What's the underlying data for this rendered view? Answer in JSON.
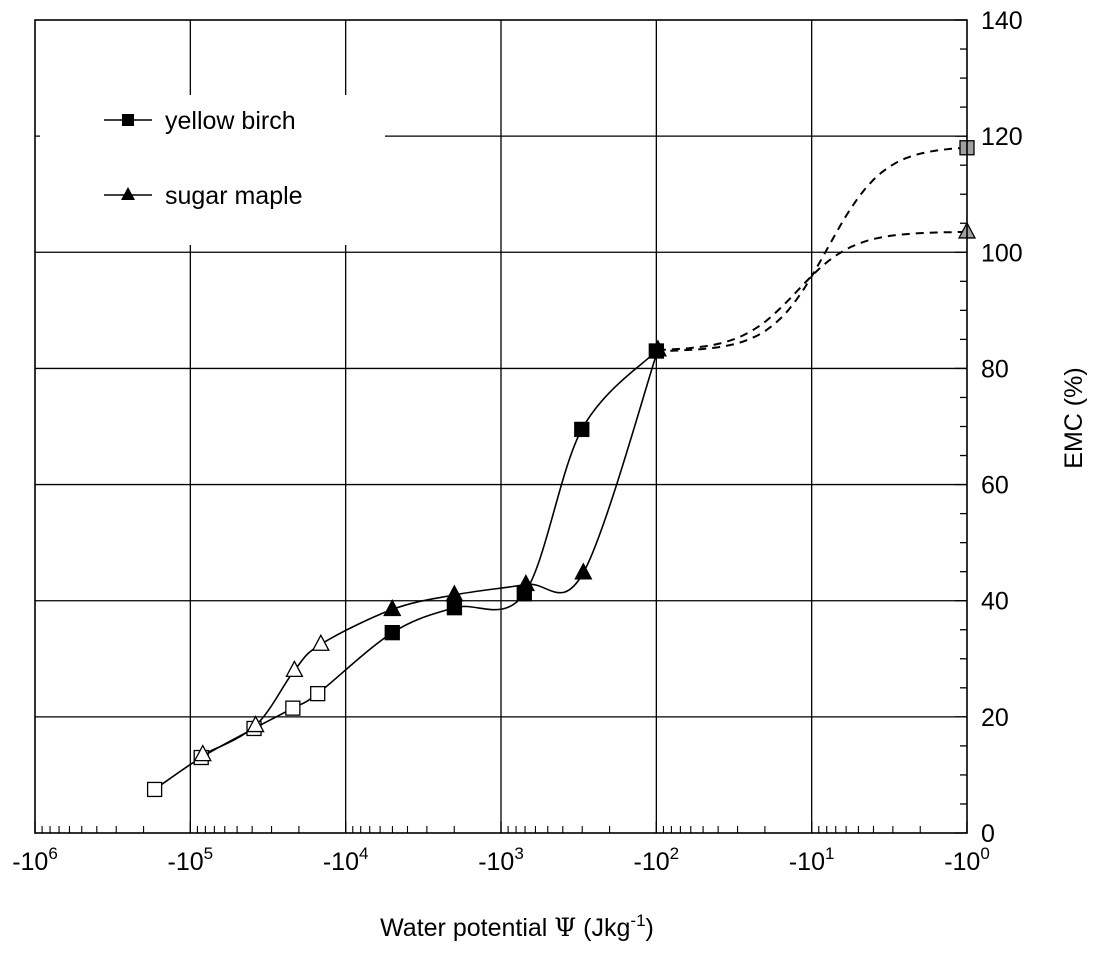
{
  "chart_data": {
    "type": "line",
    "xlabel": {
      "main": "Water potential ",
      "symbol": "Ψ",
      "unit_open": " (Jkg",
      "unit_sup": "-1",
      "unit_close": ")"
    },
    "ylabel": "EMC (%)",
    "x_scale": "log",
    "x_axis_note": "x = log10 of |water potential|; axis runs from -10^6 (left) to -10^0 (right)",
    "xlim": [
      6,
      0
    ],
    "ylim": [
      0,
      140
    ],
    "x_ticks": [
      {
        "value": 6,
        "base": "-10",
        "exp": "6"
      },
      {
        "value": 5,
        "base": "-10",
        "exp": "5"
      },
      {
        "value": 4,
        "base": "-10",
        "exp": "4"
      },
      {
        "value": 3,
        "base": "-10",
        "exp": "3"
      },
      {
        "value": 2,
        "base": "-10",
        "exp": "2"
      },
      {
        "value": 1,
        "base": "-10",
        "exp": "1"
      },
      {
        "value": 0,
        "base": "-10",
        "exp": "0"
      }
    ],
    "y_ticks": [
      "0",
      "20",
      "40",
      "60",
      "80",
      "100",
      "120",
      "140"
    ],
    "y_tick_values": [
      0,
      20,
      40,
      60,
      80,
      100,
      120,
      140
    ],
    "grid": true,
    "legend_position": "top-left",
    "series": [
      {
        "name": "yellow birch",
        "marker": "square",
        "points": [
          {
            "x": 5.23,
            "y": 7.5,
            "fill": "open"
          },
          {
            "x": 4.93,
            "y": 13,
            "fill": "open"
          },
          {
            "x": 4.59,
            "y": 18,
            "fill": "open"
          },
          {
            "x": 4.34,
            "y": 21.5,
            "fill": "open"
          },
          {
            "x": 4.18,
            "y": 24,
            "fill": "open"
          },
          {
            "x": 3.7,
            "y": 34.5,
            "fill": "filled"
          },
          {
            "x": 3.3,
            "y": 38.8,
            "fill": "filled"
          },
          {
            "x": 2.85,
            "y": 41.2,
            "fill": "filled"
          },
          {
            "x": 2.48,
            "y": 69.5,
            "fill": "filled"
          },
          {
            "x": 2.0,
            "y": 83,
            "fill": "filled"
          },
          {
            "x": 0.0,
            "y": 118,
            "fill": "gray"
          }
        ]
      },
      {
        "name": "sugar maple",
        "marker": "triangle",
        "points": [
          {
            "x": 4.92,
            "y": 13.5,
            "fill": "open"
          },
          {
            "x": 4.58,
            "y": 18.5,
            "fill": "open"
          },
          {
            "x": 4.33,
            "y": 28,
            "fill": "open"
          },
          {
            "x": 4.16,
            "y": 32.5,
            "fill": "open"
          },
          {
            "x": 3.7,
            "y": 38.5,
            "fill": "filled"
          },
          {
            "x": 3.3,
            "y": 41,
            "fill": "filled"
          },
          {
            "x": 2.84,
            "y": 42.8,
            "fill": "filled"
          },
          {
            "x": 2.47,
            "y": 44.8,
            "fill": "filled"
          },
          {
            "x": 1.99,
            "y": 83.2,
            "fill": "filled"
          },
          {
            "x": 0.0,
            "y": 103.5,
            "fill": "gray"
          }
        ]
      }
    ]
  }
}
